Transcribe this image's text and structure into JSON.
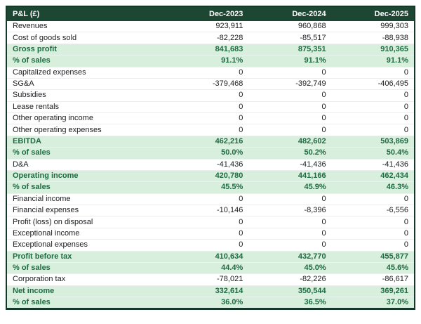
{
  "colors": {
    "header_bg": "#1d4733",
    "header_text": "#ffffff",
    "highlight_bg": "#d8efde",
    "highlight_text": "#1e6b41",
    "body_text": "#1b1d20",
    "outer_border": "#16382a",
    "row_separator": "#ededed"
  },
  "table": {
    "header": {
      "label": "P&L (£)",
      "columns": [
        "Dec-2023",
        "Dec-2024",
        "Dec-2025"
      ]
    },
    "rows": [
      {
        "label": "Revenues",
        "values": [
          "923,911",
          "960,868",
          "999,303"
        ],
        "style": "normal"
      },
      {
        "label": "Cost of goods sold",
        "values": [
          "-82,228",
          "-85,517",
          "-88,938"
        ],
        "style": "normal"
      },
      {
        "label": "Gross profit",
        "values": [
          "841,683",
          "875,351",
          "910,365"
        ],
        "style": "highlight"
      },
      {
        "label": "% of sales",
        "values": [
          "91.1%",
          "91.1%",
          "91.1%"
        ],
        "style": "highlight"
      },
      {
        "label": "Capitalized expenses",
        "values": [
          "0",
          "0",
          "0"
        ],
        "style": "normal"
      },
      {
        "label": "SG&A",
        "values": [
          "-379,468",
          "-392,749",
          "-406,495"
        ],
        "style": "normal"
      },
      {
        "label": "Subsidies",
        "values": [
          "0",
          "0",
          "0"
        ],
        "style": "normal"
      },
      {
        "label": "Lease rentals",
        "values": [
          "0",
          "0",
          "0"
        ],
        "style": "normal"
      },
      {
        "label": "Other operating income",
        "values": [
          "0",
          "0",
          "0"
        ],
        "style": "normal"
      },
      {
        "label": "Other operating expenses",
        "values": [
          "0",
          "0",
          "0"
        ],
        "style": "normal"
      },
      {
        "label": "EBITDA",
        "values": [
          "462,216",
          "482,602",
          "503,869"
        ],
        "style": "highlight"
      },
      {
        "label": "% of sales",
        "values": [
          "50.0%",
          "50.2%",
          "50.4%"
        ],
        "style": "highlight"
      },
      {
        "label": "D&A",
        "values": [
          "-41,436",
          "-41,436",
          "-41,436"
        ],
        "style": "normal"
      },
      {
        "label": "Operating income",
        "values": [
          "420,780",
          "441,166",
          "462,434"
        ],
        "style": "highlight"
      },
      {
        "label": "% of sales",
        "values": [
          "45.5%",
          "45.9%",
          "46.3%"
        ],
        "style": "highlight"
      },
      {
        "label": "Financial income",
        "values": [
          "0",
          "0",
          "0"
        ],
        "style": "normal"
      },
      {
        "label": "Financial expenses",
        "values": [
          "-10,146",
          "-8,396",
          "-6,556"
        ],
        "style": "normal"
      },
      {
        "label": "Profit (loss) on disposal",
        "values": [
          "0",
          "0",
          "0"
        ],
        "style": "normal"
      },
      {
        "label": "Exceptional income",
        "values": [
          "0",
          "0",
          "0"
        ],
        "style": "normal"
      },
      {
        "label": "Exceptional expenses",
        "values": [
          "0",
          "0",
          "0"
        ],
        "style": "normal"
      },
      {
        "label": "Profit before tax",
        "values": [
          "410,634",
          "432,770",
          "455,877"
        ],
        "style": "highlight"
      },
      {
        "label": "% of sales",
        "values": [
          "44.4%",
          "45.0%",
          "45.6%"
        ],
        "style": "highlight"
      },
      {
        "label": "Corporation tax",
        "values": [
          "-78,021",
          "-82,226",
          "-86,617"
        ],
        "style": "normal"
      },
      {
        "label": "Net income",
        "values": [
          "332,614",
          "350,544",
          "369,261"
        ],
        "style": "highlight"
      },
      {
        "label": "% of sales",
        "values": [
          "36.0%",
          "36.5%",
          "37.0%"
        ],
        "style": "highlight"
      }
    ]
  },
  "chart_data": {
    "type": "table",
    "title": "P&L (£)",
    "categories": [
      "Dec-2023",
      "Dec-2024",
      "Dec-2025"
    ],
    "series": [
      {
        "name": "Revenues",
        "values": [
          923911,
          960868,
          999303
        ]
      },
      {
        "name": "Cost of goods sold",
        "values": [
          -82228,
          -85517,
          -88938
        ]
      },
      {
        "name": "Gross profit",
        "values": [
          841683,
          875351,
          910365
        ]
      },
      {
        "name": "Gross profit % of sales",
        "values": [
          91.1,
          91.1,
          91.1
        ]
      },
      {
        "name": "Capitalized expenses",
        "values": [
          0,
          0,
          0
        ]
      },
      {
        "name": "SG&A",
        "values": [
          -379468,
          -392749,
          -406495
        ]
      },
      {
        "name": "Subsidies",
        "values": [
          0,
          0,
          0
        ]
      },
      {
        "name": "Lease rentals",
        "values": [
          0,
          0,
          0
        ]
      },
      {
        "name": "Other operating income",
        "values": [
          0,
          0,
          0
        ]
      },
      {
        "name": "Other operating expenses",
        "values": [
          0,
          0,
          0
        ]
      },
      {
        "name": "EBITDA",
        "values": [
          462216,
          482602,
          503869
        ]
      },
      {
        "name": "EBITDA % of sales",
        "values": [
          50.0,
          50.2,
          50.4
        ]
      },
      {
        "name": "D&A",
        "values": [
          -41436,
          -41436,
          -41436
        ]
      },
      {
        "name": "Operating income",
        "values": [
          420780,
          441166,
          462434
        ]
      },
      {
        "name": "Operating income % of sales",
        "values": [
          45.5,
          45.9,
          46.3
        ]
      },
      {
        "name": "Financial income",
        "values": [
          0,
          0,
          0
        ]
      },
      {
        "name": "Financial expenses",
        "values": [
          -10146,
          -8396,
          -6556
        ]
      },
      {
        "name": "Profit (loss) on disposal",
        "values": [
          0,
          0,
          0
        ]
      },
      {
        "name": "Exceptional income",
        "values": [
          0,
          0,
          0
        ]
      },
      {
        "name": "Exceptional expenses",
        "values": [
          0,
          0,
          0
        ]
      },
      {
        "name": "Profit before tax",
        "values": [
          410634,
          432770,
          455877
        ]
      },
      {
        "name": "Profit before tax % of sales",
        "values": [
          44.4,
          45.0,
          45.6
        ]
      },
      {
        "name": "Corporation tax",
        "values": [
          -78021,
          -82226,
          -86617
        ]
      },
      {
        "name": "Net income",
        "values": [
          332614,
          350544,
          369261
        ]
      },
      {
        "name": "Net income % of sales",
        "values": [
          36.0,
          36.5,
          37.0
        ]
      }
    ]
  }
}
